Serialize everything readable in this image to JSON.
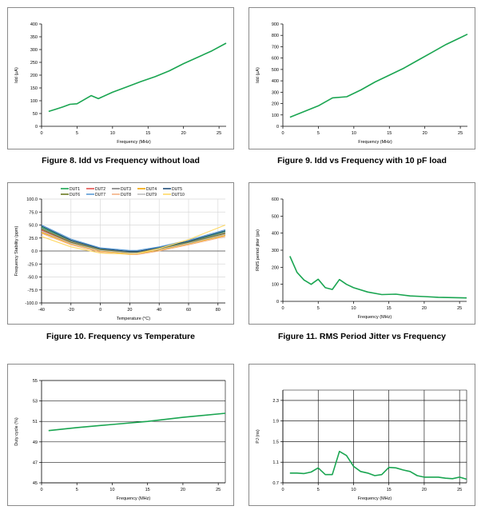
{
  "chart_data": [
    {
      "type": "line",
      "title": "Figure 8. Idd vs Frequency without load",
      "xlabel": "Frequency (MHz)",
      "ylabel": "Idd (µA)",
      "xlim": [
        0,
        26
      ],
      "ylim": [
        0,
        400
      ],
      "xticks": [
        0,
        5,
        10,
        15,
        20,
        25
      ],
      "yticks": [
        0,
        50,
        100,
        150,
        200,
        250,
        300,
        350,
        400
      ],
      "ytick_labels": [
        "0",
        "50",
        "100",
        "150",
        "200",
        "250",
        "300",
        "350",
        "400"
      ],
      "grid": false,
      "series": [
        {
          "name": "Idd",
          "color": "#1aa551",
          "x": [
            1,
            2,
            3,
            4,
            5,
            6,
            7,
            8,
            10,
            12,
            14,
            16,
            18,
            20,
            22,
            24,
            26
          ],
          "y": [
            58,
            67,
            76,
            86,
            88,
            104,
            120,
            108,
            133,
            154,
            175,
            194,
            217,
            245,
            270,
            295,
            325
          ]
        }
      ]
    },
    {
      "type": "line",
      "title": "Figure 9. Idd vs Frequency with 10 pF load",
      "xlabel": "Frequency (MHz)",
      "ylabel": "Idd (µA)",
      "xlim": [
        0,
        26
      ],
      "ylim": [
        0,
        900
      ],
      "xticks": [
        0,
        5,
        10,
        15,
        20,
        25
      ],
      "yticks": [
        0,
        100,
        200,
        300,
        400,
        500,
        600,
        700,
        800,
        900
      ],
      "ytick_labels": [
        "0",
        "100",
        "200",
        "300",
        "400",
        "500",
        "600",
        "700",
        "800",
        "900"
      ],
      "grid": false,
      "series": [
        {
          "name": "Idd",
          "color": "#1aa551",
          "x": [
            1,
            3,
            5,
            7,
            9,
            11,
            13,
            15,
            17,
            19,
            21,
            23,
            25,
            26
          ],
          "y": [
            80,
            130,
            180,
            250,
            260,
            320,
            390,
            450,
            510,
            580,
            650,
            720,
            780,
            810
          ]
        }
      ]
    },
    {
      "type": "line",
      "title": "Figure 10. Frequency vs Temperature",
      "xlabel": "Temperature (°C)",
      "ylabel": "Frequency Stability (ppm)",
      "xlim": [
        -40,
        85
      ],
      "ylim": [
        -100,
        100
      ],
      "xticks": [
        -40,
        -20,
        0,
        20,
        40,
        60,
        80
      ],
      "yticks": [
        -100,
        -75,
        -50,
        -25,
        0,
        25,
        50,
        75,
        100
      ],
      "ytick_labels": [
        "-100.0",
        "-75.0",
        "-50.0",
        "-25.0",
        "0.0",
        "25.0",
        "50.0",
        "75.0",
        "100.0"
      ],
      "grid": true,
      "legend": "top",
      "series": [
        {
          "name": "DUT1",
          "color": "#1aa551",
          "x": [
            -40,
            -20,
            0,
            20,
            25,
            40,
            60,
            85
          ],
          "y": [
            46,
            20,
            4,
            -2,
            -2,
            6,
            18,
            38
          ]
        },
        {
          "name": "DUT2",
          "color": "#e4524e",
          "x": [
            -40,
            -20,
            0,
            20,
            25,
            40,
            60,
            85
          ],
          "y": [
            40,
            16,
            1,
            -4,
            -4,
            3,
            15,
            33
          ]
        },
        {
          "name": "DUT3",
          "color": "#7f7f7f",
          "x": [
            -40,
            -20,
            0,
            20,
            25,
            40,
            60,
            85
          ],
          "y": [
            44,
            19,
            3,
            -2,
            -2,
            5,
            17,
            36
          ]
        },
        {
          "name": "DUT4",
          "color": "#f2a400",
          "x": [
            -40,
            -20,
            0,
            20,
            25,
            40,
            60,
            85
          ],
          "y": [
            36,
            14,
            0,
            -5,
            -5,
            2,
            14,
            30
          ]
        },
        {
          "name": "DUT5",
          "color": "#1f4e79",
          "x": [
            -40,
            -20,
            0,
            20,
            25,
            40,
            60,
            85
          ],
          "y": [
            48,
            21,
            5,
            -1,
            -1,
            7,
            19,
            39
          ]
        },
        {
          "name": "DUT6",
          "color": "#6b7a1f",
          "x": [
            -40,
            -20,
            0,
            20,
            25,
            40,
            60,
            85
          ],
          "y": [
            42,
            17,
            2,
            -3,
            -3,
            4,
            16,
            34
          ]
        },
        {
          "name": "DUT7",
          "color": "#5b9bd5",
          "x": [
            -40,
            -20,
            0,
            20,
            25,
            40,
            60,
            85
          ],
          "y": [
            50,
            23,
            6,
            1,
            1,
            8,
            21,
            41
          ]
        },
        {
          "name": "DUT8",
          "color": "#f4b183",
          "x": [
            -40,
            -20,
            0,
            20,
            25,
            40,
            60,
            85
          ],
          "y": [
            34,
            12,
            -2,
            -7,
            -7,
            0,
            12,
            28
          ]
        },
        {
          "name": "DUT9",
          "color": "#bfbfbf",
          "x": [
            -40,
            -20,
            0,
            20,
            25,
            40,
            60,
            85
          ],
          "y": [
            38,
            15,
            1,
            -4,
            -4,
            3,
            15,
            32
          ]
        },
        {
          "name": "DUT10",
          "color": "#ffd966",
          "x": [
            -40,
            -20,
            0,
            20,
            25,
            40,
            60,
            85
          ],
          "y": [
            28,
            8,
            -4,
            -6,
            -5,
            5,
            22,
            50
          ]
        }
      ]
    },
    {
      "type": "line",
      "title": "Figure 11. RMS Period Jitter vs Frequency",
      "xlabel": "Frequency (MHz)",
      "ylabel": "RMS period jitter (ps)",
      "xlim": [
        0,
        26
      ],
      "ylim": [
        0,
        600
      ],
      "xticks": [
        0,
        5,
        10,
        15,
        20,
        25
      ],
      "yticks": [
        0,
        100,
        200,
        300,
        400,
        500,
        600
      ],
      "ytick_labels": [
        "0",
        "100",
        "200",
        "300",
        "400",
        "500",
        "600"
      ],
      "grid": false,
      "series": [
        {
          "name": "Jitter",
          "color": "#1aa551",
          "x": [
            1,
            2,
            3,
            4,
            5,
            6,
            7,
            8,
            9,
            10,
            12,
            14,
            16,
            18,
            20,
            22,
            24,
            26
          ],
          "y": [
            265,
            170,
            125,
            100,
            130,
            80,
            70,
            128,
            100,
            80,
            55,
            40,
            42,
            32,
            28,
            24,
            22,
            20
          ]
        }
      ]
    },
    {
      "type": "line",
      "title": "",
      "xlabel": "Frequency (MHz)",
      "ylabel": "Duty cycle (%)",
      "xlim": [
        0,
        26
      ],
      "ylim": [
        45,
        55
      ],
      "xticks": [
        0,
        5,
        10,
        15,
        20,
        25
      ],
      "yticks": [
        45,
        47,
        49,
        51,
        53,
        55
      ],
      "ytick_labels": [
        "45",
        "47",
        "49",
        "51",
        "53",
        "55"
      ],
      "grid": true,
      "series": [
        {
          "name": "Duty cycle",
          "color": "#1aa551",
          "x": [
            1,
            5,
            10,
            15,
            20,
            26
          ],
          "y": [
            50.1,
            50.4,
            50.7,
            51.0,
            51.4,
            51.8
          ]
        }
      ]
    },
    {
      "type": "line",
      "title": "",
      "xlabel": "Frequency (MHz)",
      "ylabel": "PJ (ns)",
      "xlim": [
        0,
        26
      ],
      "ylim": [
        0.7,
        2.5
      ],
      "xticks": [
        0,
        5,
        10,
        15,
        20,
        25
      ],
      "yticks": [
        0.7,
        1.1,
        1.5,
        1.9,
        2.3
      ],
      "ytick_labels": [
        "0.7",
        "1.1",
        "1.5",
        "1.9",
        "2.3"
      ],
      "grid": true,
      "series": [
        {
          "name": "PJ",
          "color": "#1aa551",
          "x": [
            1,
            2,
            3,
            4,
            5,
            6,
            7,
            8,
            9,
            10,
            11,
            12,
            13,
            14,
            15,
            16,
            17,
            18,
            19,
            20,
            21,
            22,
            23,
            24,
            25,
            26
          ],
          "y": [
            0.89,
            0.89,
            0.88,
            0.91,
            0.99,
            0.86,
            0.86,
            1.31,
            1.23,
            1.02,
            0.92,
            0.89,
            0.84,
            0.86,
            1.0,
            0.99,
            0.95,
            0.92,
            0.84,
            0.81,
            0.81,
            0.81,
            0.79,
            0.78,
            0.81,
            0.77
          ]
        }
      ]
    }
  ]
}
